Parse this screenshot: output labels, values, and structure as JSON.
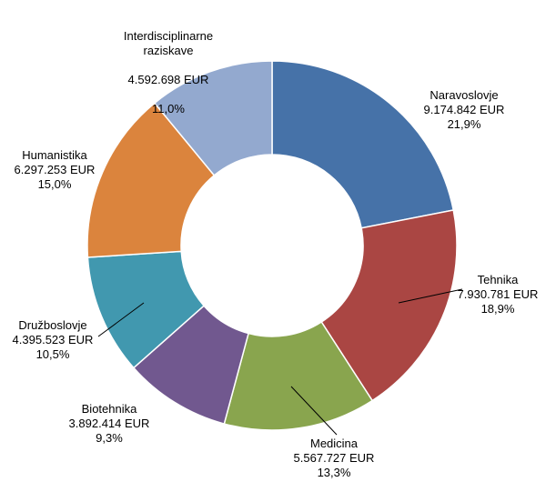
{
  "chart_data": {
    "type": "pie",
    "donut": true,
    "currency": "EUR",
    "slices": [
      {
        "name": "Naravoslovje",
        "value": 9174842,
        "value_label": "9.174.842 EUR",
        "percent_label": "21,9%",
        "color": "#4672A8"
      },
      {
        "name": "Tehnika",
        "value": 7930781,
        "value_label": "7.930.781 EUR",
        "percent_label": "18,9%",
        "color": "#AA4643"
      },
      {
        "name": "Medicina",
        "value": 5567727,
        "value_label": "5.567.727 EUR",
        "percent_label": "13,3%",
        "color": "#89A54E"
      },
      {
        "name": "Biotehnika",
        "value": 3892414,
        "value_label": "3.892.414 EUR",
        "percent_label": "9,3%",
        "color": "#71588F"
      },
      {
        "name": "Družboslovje",
        "value": 4395523,
        "value_label": "4.395.523 EUR",
        "percent_label": "10,5%",
        "color": "#4198AF"
      },
      {
        "name": "Humanistika",
        "value": 6297253,
        "value_label": "6.297.253 EUR",
        "percent_label": "15,0%",
        "color": "#DB843D"
      },
      {
        "name": "Interdisciplinarne\nraziskave",
        "value": 4592698,
        "value_label": "4.592.698 EUR",
        "percent_label": "11,0%",
        "color": "#93A9CF"
      }
    ]
  }
}
